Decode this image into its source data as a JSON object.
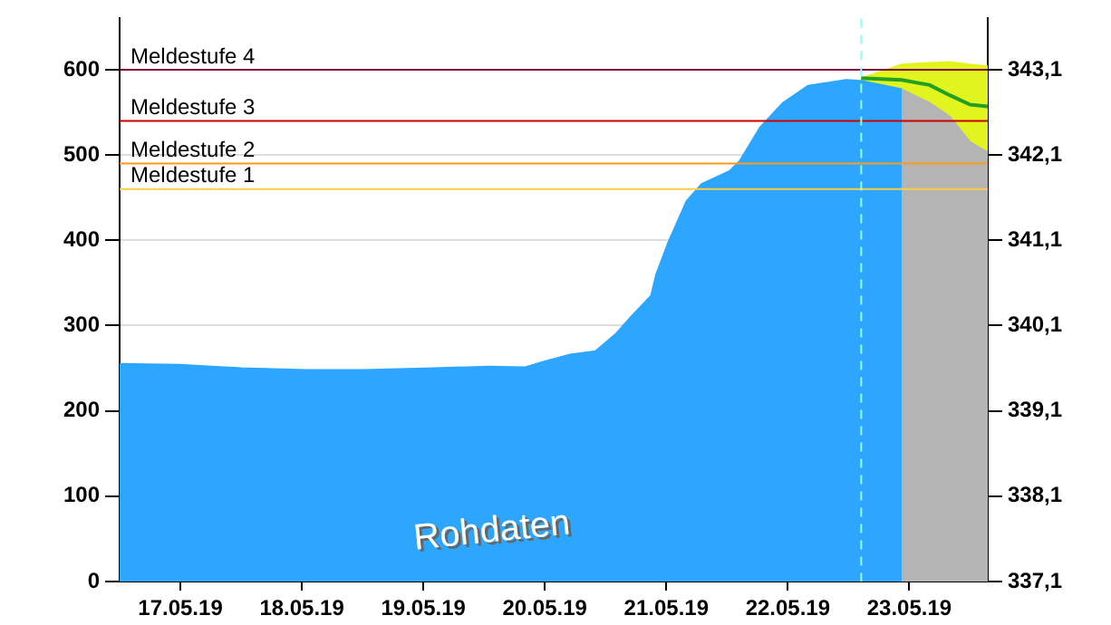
{
  "chart_data": {
    "type": "area",
    "annotations": [
      "Rohdaten"
    ],
    "series": [
      {
        "color": "#e2f41e",
        "x": [
          "--05-23T02:30",
          "--05-23T10:30",
          "--05-23T16:00",
          "--05-23T20:00",
          "--05-24T00:00",
          "--05-24T03:30"
        ],
        "values": [
          590,
          606,
          608,
          609,
          606,
          604
        ]
      },
      {
        "color": "#2ca6ff",
        "x": [
          "--05-17T00:00",
          "--05-17T12:00",
          "--05-18T00:00",
          "--05-18T13:00",
          "--05-19T00:00",
          "--05-19T14:00",
          "--05-20T01:00",
          "--05-20T08:00",
          "--05-20T12:00",
          "--05-20T17:00",
          "--05-20T22:00",
          "--05-21T02:00",
          "--05-21T05:00",
          "--05-21T09:00",
          "--05-21T10:00",
          "--05-21T12:30",
          "--05-21T16:00",
          "--05-21T19:00",
          "--05-22T00:30",
          "--05-22T02:30",
          "--05-22T06:30",
          "--05-22T11:00",
          "--05-22T16:00",
          "--05-22T23:30",
          "--05-23T02:30",
          "--05-23T10:30"
        ],
        "values": [
          255,
          254,
          250,
          248,
          248,
          250,
          252,
          251,
          258,
          266,
          270,
          290,
          310,
          335,
          360,
          399,
          446,
          466,
          481,
          493,
          532,
          561,
          581,
          588,
          587,
          577
        ]
      },
      {
        "color": "#b4b4b4",
        "x": [
          "--05-23T10:30",
          "--05-23T16:00",
          "--05-23T20:00",
          "--05-24T00:00",
          "--05-24T03:30"
        ],
        "values": [
          577,
          561,
          545,
          515,
          503
        ]
      },
      {
        "type": "line",
        "color": "#22a022",
        "x": [
          "--05-23T02:30",
          "--05-23T10:30",
          "--05-23T16:00",
          "--05-23T20:00",
          "--05-24T00:00",
          "--05-24T03:30"
        ],
        "values": [
          590,
          588,
          582,
          570,
          559,
          557
        ]
      }
    ],
    "xlim": [
      "--05-17T00:00",
      "--05-24T03:30"
    ],
    "xticks": [
      {
        "value": "--05-17T12:00",
        "label": "17.05.19"
      },
      {
        "value": "--05-18T12:00",
        "label": "18.05.19"
      },
      {
        "value": "--05-19T12:00",
        "label": "19.05.19"
      },
      {
        "value": "--05-20T12:00",
        "label": "20.05.19"
      },
      {
        "value": "--05-21T12:00",
        "label": "21.05.19"
      },
      {
        "value": "--05-22T12:00",
        "label": "22.05.19"
      },
      {
        "value": "--05-23T12:00",
        "label": "23.05.19"
      }
    ],
    "ylim": [
      0,
      660
    ],
    "yticks": [
      0,
      100,
      200,
      300,
      400,
      500,
      600
    ],
    "y2lim": [
      337.1,
      343.7
    ],
    "y2ticks": [
      {
        "value": 337.1,
        "label": "337,1"
      },
      {
        "value": 338.1,
        "label": "338,1"
      },
      {
        "value": 339.1,
        "label": "339,1"
      },
      {
        "value": 340.1,
        "label": "340,1"
      },
      {
        "value": 341.1,
        "label": "341,1"
      },
      {
        "value": 342.1,
        "label": "342,1"
      },
      {
        "value": 343.1,
        "label": "343,1"
      }
    ],
    "grid": "y",
    "legend": false,
    "marker": "none",
    "ref_lines": [
      {
        "axis": "y",
        "value": 600,
        "label": "Meldestufe 4",
        "color": "#800040"
      },
      {
        "axis": "y",
        "value": 540,
        "label": "Meldestufe 3",
        "color": "#cc0000"
      },
      {
        "axis": "y",
        "value": 490,
        "label": "Meldestufe 2",
        "color": "#ff9a1a"
      },
      {
        "axis": "y",
        "value": 460,
        "label": "Meldestufe 1",
        "color": "#ffcc44"
      },
      {
        "axis": "x",
        "value": "--05-23T02:30",
        "color": "#90ffff",
        "line_style": "dashed"
      }
    ]
  }
}
